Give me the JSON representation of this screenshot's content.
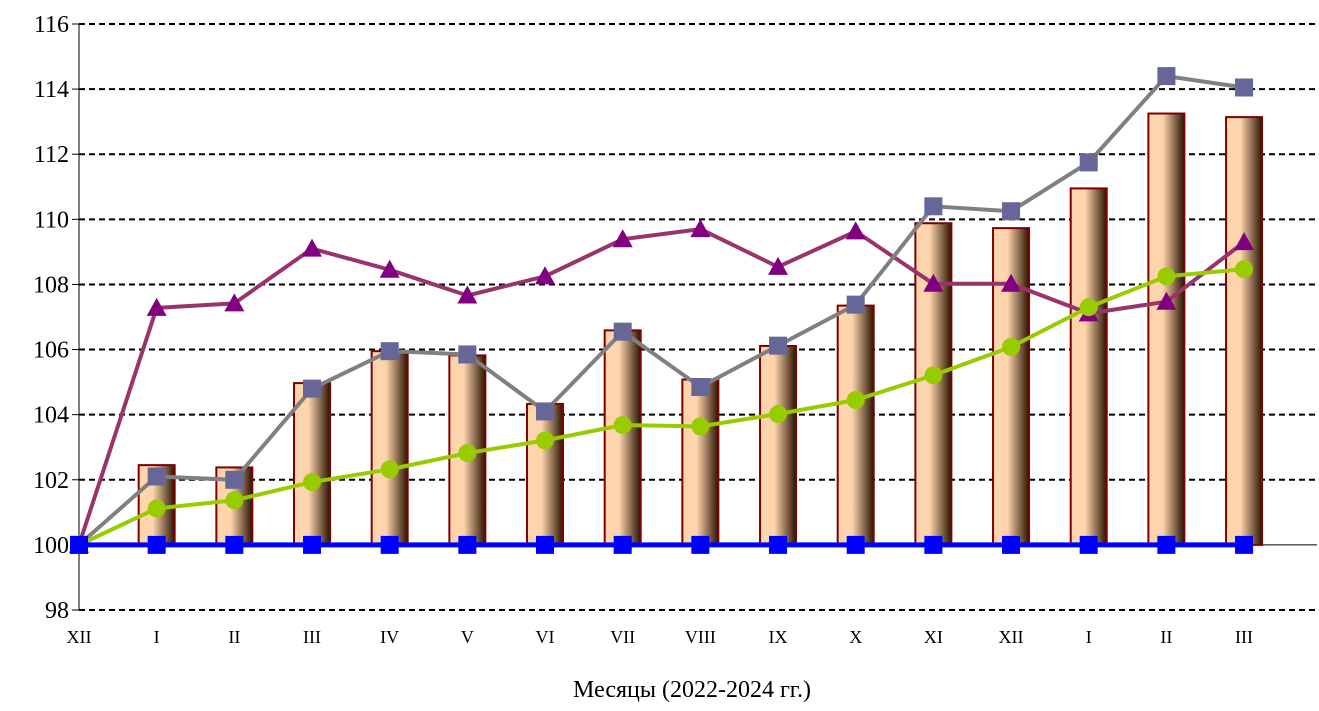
{
  "chart_data": {
    "type": "bar",
    "xlabel": "Месяцы (2022-2024 гг.)",
    "ylabel": "",
    "ylim": [
      98,
      116
    ],
    "yticks": [
      98,
      100,
      102,
      104,
      106,
      108,
      110,
      112,
      114,
      116
    ],
    "grid": true,
    "baseline": 100,
    "categories": [
      "XII",
      "I",
      "II",
      "III",
      "IV",
      "V",
      "VI",
      "VII",
      "VIII",
      "IX",
      "X",
      "XI",
      "XII",
      "I",
      "II",
      "III"
    ],
    "bars": {
      "values": [
        100.0,
        102.45,
        102.38,
        104.97,
        105.95,
        105.82,
        104.33,
        106.59,
        105.08,
        106.11,
        107.35,
        109.88,
        109.73,
        110.95,
        113.25,
        113.14
      ],
      "fill_light": "#fdd4ac",
      "fill_dark": "#2a1400",
      "stroke": "#800000"
    },
    "series": [
      {
        "marker": "triangle",
        "line_color": "#99336b",
        "marker_color": "#800080",
        "values": [
          100.0,
          107.28,
          107.42,
          109.1,
          108.45,
          107.66,
          108.25,
          109.39,
          109.7,
          108.54,
          109.63,
          108.02,
          108.02,
          107.11,
          107.47,
          109.3
        ]
      },
      {
        "marker": "square",
        "line_color": "#808080",
        "marker_color": "#666699",
        "values": [
          100.0,
          102.1,
          102.0,
          104.8,
          105.95,
          105.85,
          104.1,
          106.55,
          104.85,
          106.12,
          107.38,
          110.4,
          110.25,
          111.75,
          114.4,
          114.05
        ]
      },
      {
        "marker": "circle",
        "line_color": "#99cc00",
        "marker_color": "#99cc00",
        "values": [
          100.0,
          101.12,
          101.37,
          101.93,
          102.32,
          102.82,
          103.21,
          103.68,
          103.64,
          104.02,
          104.45,
          105.21,
          106.08,
          107.3,
          108.25,
          108.47
        ]
      },
      {
        "marker": "square",
        "line_color": "#0000ff",
        "marker_color": "#0000ff",
        "values": [
          100.0,
          100.0,
          100.0,
          100.0,
          100.0,
          100.0,
          100.0,
          100.0,
          100.0,
          100.0,
          100.0,
          100.0,
          100.0,
          100.0,
          100.0,
          100.0
        ]
      }
    ]
  }
}
